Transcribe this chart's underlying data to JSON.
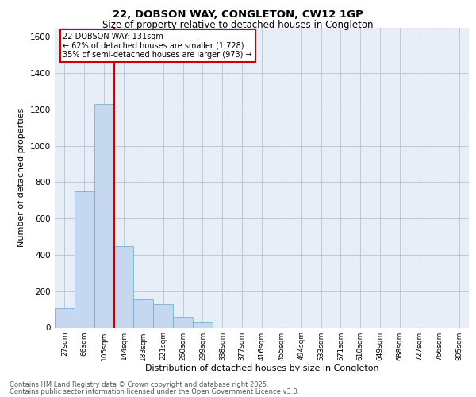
{
  "title_line1": "22, DOBSON WAY, CONGLETON, CW12 1GP",
  "title_line2": "Size of property relative to detached houses in Congleton",
  "xlabel": "Distribution of detached houses by size in Congleton",
  "ylabel": "Number of detached properties",
  "footnote_line1": "Contains HM Land Registry data © Crown copyright and database right 2025.",
  "footnote_line2": "Contains public sector information licensed under the Open Government Licence v3.0.",
  "categories": [
    "27sqm",
    "66sqm",
    "105sqm",
    "144sqm",
    "183sqm",
    "221sqm",
    "260sqm",
    "299sqm",
    "338sqm",
    "377sqm",
    "416sqm",
    "455sqm",
    "494sqm",
    "533sqm",
    "571sqm",
    "610sqm",
    "649sqm",
    "688sqm",
    "727sqm",
    "766sqm",
    "805sqm"
  ],
  "values": [
    105,
    750,
    1230,
    450,
    155,
    130,
    60,
    30,
    0,
    0,
    0,
    0,
    0,
    0,
    0,
    0,
    0,
    0,
    0,
    0,
    0
  ],
  "bar_color": "#c5d8f0",
  "bar_edge_color": "#7aafd4",
  "grid_color": "#c0c8d8",
  "background_color": "#e8eef8",
  "vline_x_index": 2.5,
  "vline_color": "#cc0000",
  "annotation_text": "22 DOBSON WAY: 131sqm\n← 62% of detached houses are smaller (1,728)\n35% of semi-detached houses are larger (973) →",
  "annotation_box_color": "#cc0000",
  "ylim": [
    0,
    1650
  ],
  "yticks": [
    0,
    200,
    400,
    600,
    800,
    1000,
    1200,
    1400,
    1600
  ]
}
